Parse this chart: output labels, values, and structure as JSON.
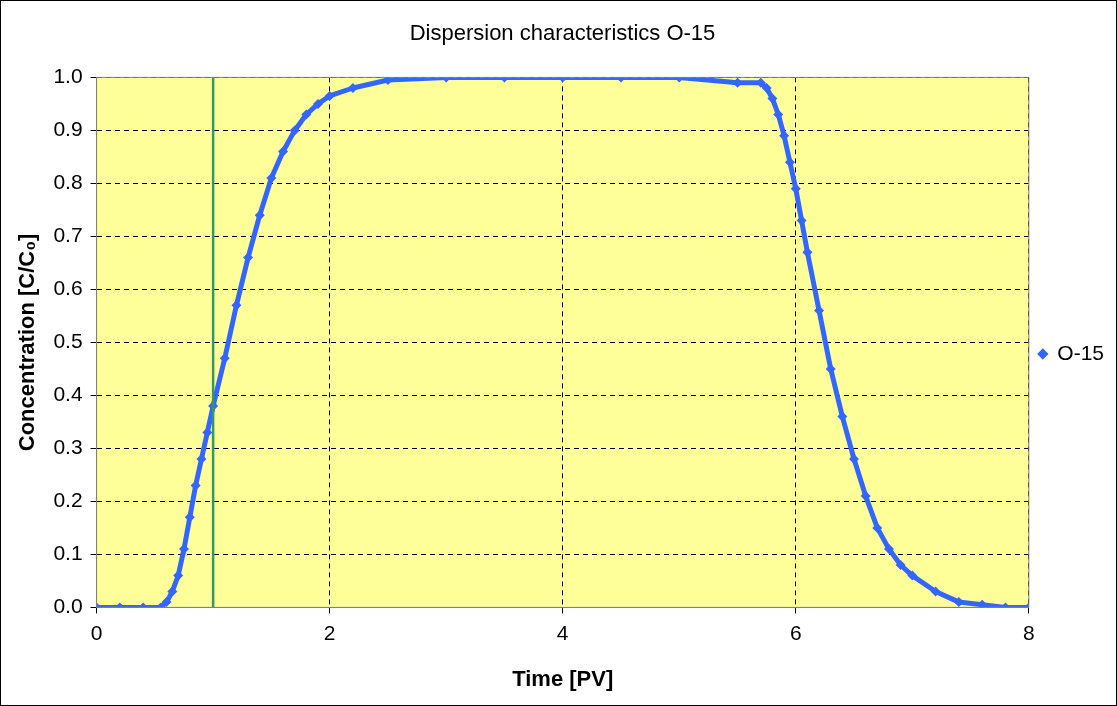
{
  "chart_data": {
    "type": "line",
    "title": "Dispersion characteristics O-15",
    "xlabel": "Time [PV]",
    "ylabel": "Concentration [C/C₀]",
    "xlim": [
      0,
      8
    ],
    "xticks": [
      0,
      2,
      4,
      6,
      8
    ],
    "ylim": [
      0,
      1
    ],
    "yticks": [
      {
        "value": 0,
        "label": "0.0"
      },
      {
        "value": 0.1,
        "label": "0.1"
      },
      {
        "value": 0.2,
        "label": "0.2"
      },
      {
        "value": 0.3,
        "label": "0.3"
      },
      {
        "value": 0.4,
        "label": "0.4"
      },
      {
        "value": 0.5,
        "label": "0.5"
      },
      {
        "value": 0.6,
        "label": "0.6"
      },
      {
        "value": 0.7,
        "label": "0.7"
      },
      {
        "value": 0.8,
        "label": "0.8"
      },
      {
        "value": 0.9,
        "label": "0.9"
      },
      {
        "value": 1,
        "label": "1.0"
      }
    ],
    "grid": true,
    "legend": "right",
    "marker": "diamond",
    "ref_lines": [
      {
        "axis": "x",
        "value": 1,
        "color": "#339966"
      }
    ],
    "series": [
      {
        "name": "O-15",
        "color": "#3366ff",
        "x": [
          0,
          0.2,
          0.4,
          0.55,
          0.6,
          0.65,
          0.7,
          0.75,
          0.8,
          0.85,
          0.9,
          0.95,
          1.0,
          1.1,
          1.2,
          1.3,
          1.4,
          1.5,
          1.6,
          1.7,
          1.8,
          1.9,
          2.0,
          2.2,
          2.5,
          3.0,
          3.5,
          4.0,
          4.5,
          5.0,
          5.5,
          5.7,
          5.75,
          5.8,
          5.85,
          5.9,
          5.95,
          6.0,
          6.05,
          6.1,
          6.2,
          6.3,
          6.4,
          6.5,
          6.6,
          6.7,
          6.8,
          6.9,
          7.0,
          7.2,
          7.4,
          7.6,
          7.8,
          8.0
        ],
        "values": [
          0,
          0,
          0,
          0,
          0.01,
          0.03,
          0.06,
          0.11,
          0.17,
          0.23,
          0.28,
          0.33,
          0.38,
          0.47,
          0.57,
          0.66,
          0.74,
          0.81,
          0.86,
          0.9,
          0.93,
          0.95,
          0.965,
          0.98,
          0.995,
          1,
          1,
          1,
          1,
          1,
          0.99,
          0.99,
          0.98,
          0.96,
          0.93,
          0.89,
          0.84,
          0.79,
          0.73,
          0.67,
          0.56,
          0.45,
          0.36,
          0.28,
          0.21,
          0.15,
          0.11,
          0.08,
          0.06,
          0.03,
          0.01,
          0.005,
          0,
          0
        ]
      }
    ]
  }
}
